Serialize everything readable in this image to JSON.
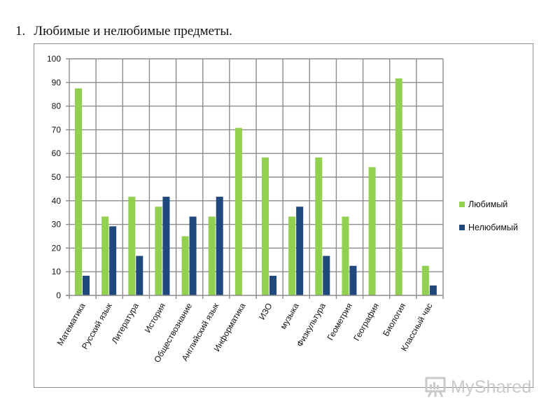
{
  "heading": {
    "number": "1.",
    "text": "Любимые и нелюбимые предметы."
  },
  "colors": {
    "liked": "#92d050",
    "disliked": "#1f497d",
    "grid": "#8c8c8c",
    "text": "#111111"
  },
  "watermark": {
    "brand": "MyShared",
    "icon": "presentation-board-icon"
  },
  "chart_data": {
    "type": "bar",
    "title": "",
    "xlabel": "",
    "ylabel": "",
    "ylim": [
      0,
      100
    ],
    "yticks": [
      0,
      10,
      20,
      30,
      40,
      50,
      60,
      70,
      80,
      90,
      100
    ],
    "grid": true,
    "legend_position": "right",
    "categories": [
      "Математика",
      "Русский язык",
      "Литература",
      "История",
      "Обществознание",
      "Английский язык",
      "Информатика",
      "ИЗО",
      "музыка",
      "Физкультура",
      "Геометрия",
      "География",
      "Биология",
      "Классный час"
    ],
    "series": [
      {
        "name": "Любимый",
        "color": "#92d050",
        "values": [
          87.5,
          33.3,
          41.7,
          37.5,
          25,
          33.3,
          70.8,
          58.3,
          33.3,
          58.3,
          33.3,
          54.2,
          91.7,
          12.5
        ]
      },
      {
        "name": "Нелюбимый",
        "color": "#1f497d",
        "values": [
          8.3,
          29.2,
          16.7,
          41.7,
          33.3,
          41.7,
          0,
          8.3,
          37.5,
          16.7,
          12.5,
          0,
          0,
          4.2
        ]
      }
    ]
  }
}
